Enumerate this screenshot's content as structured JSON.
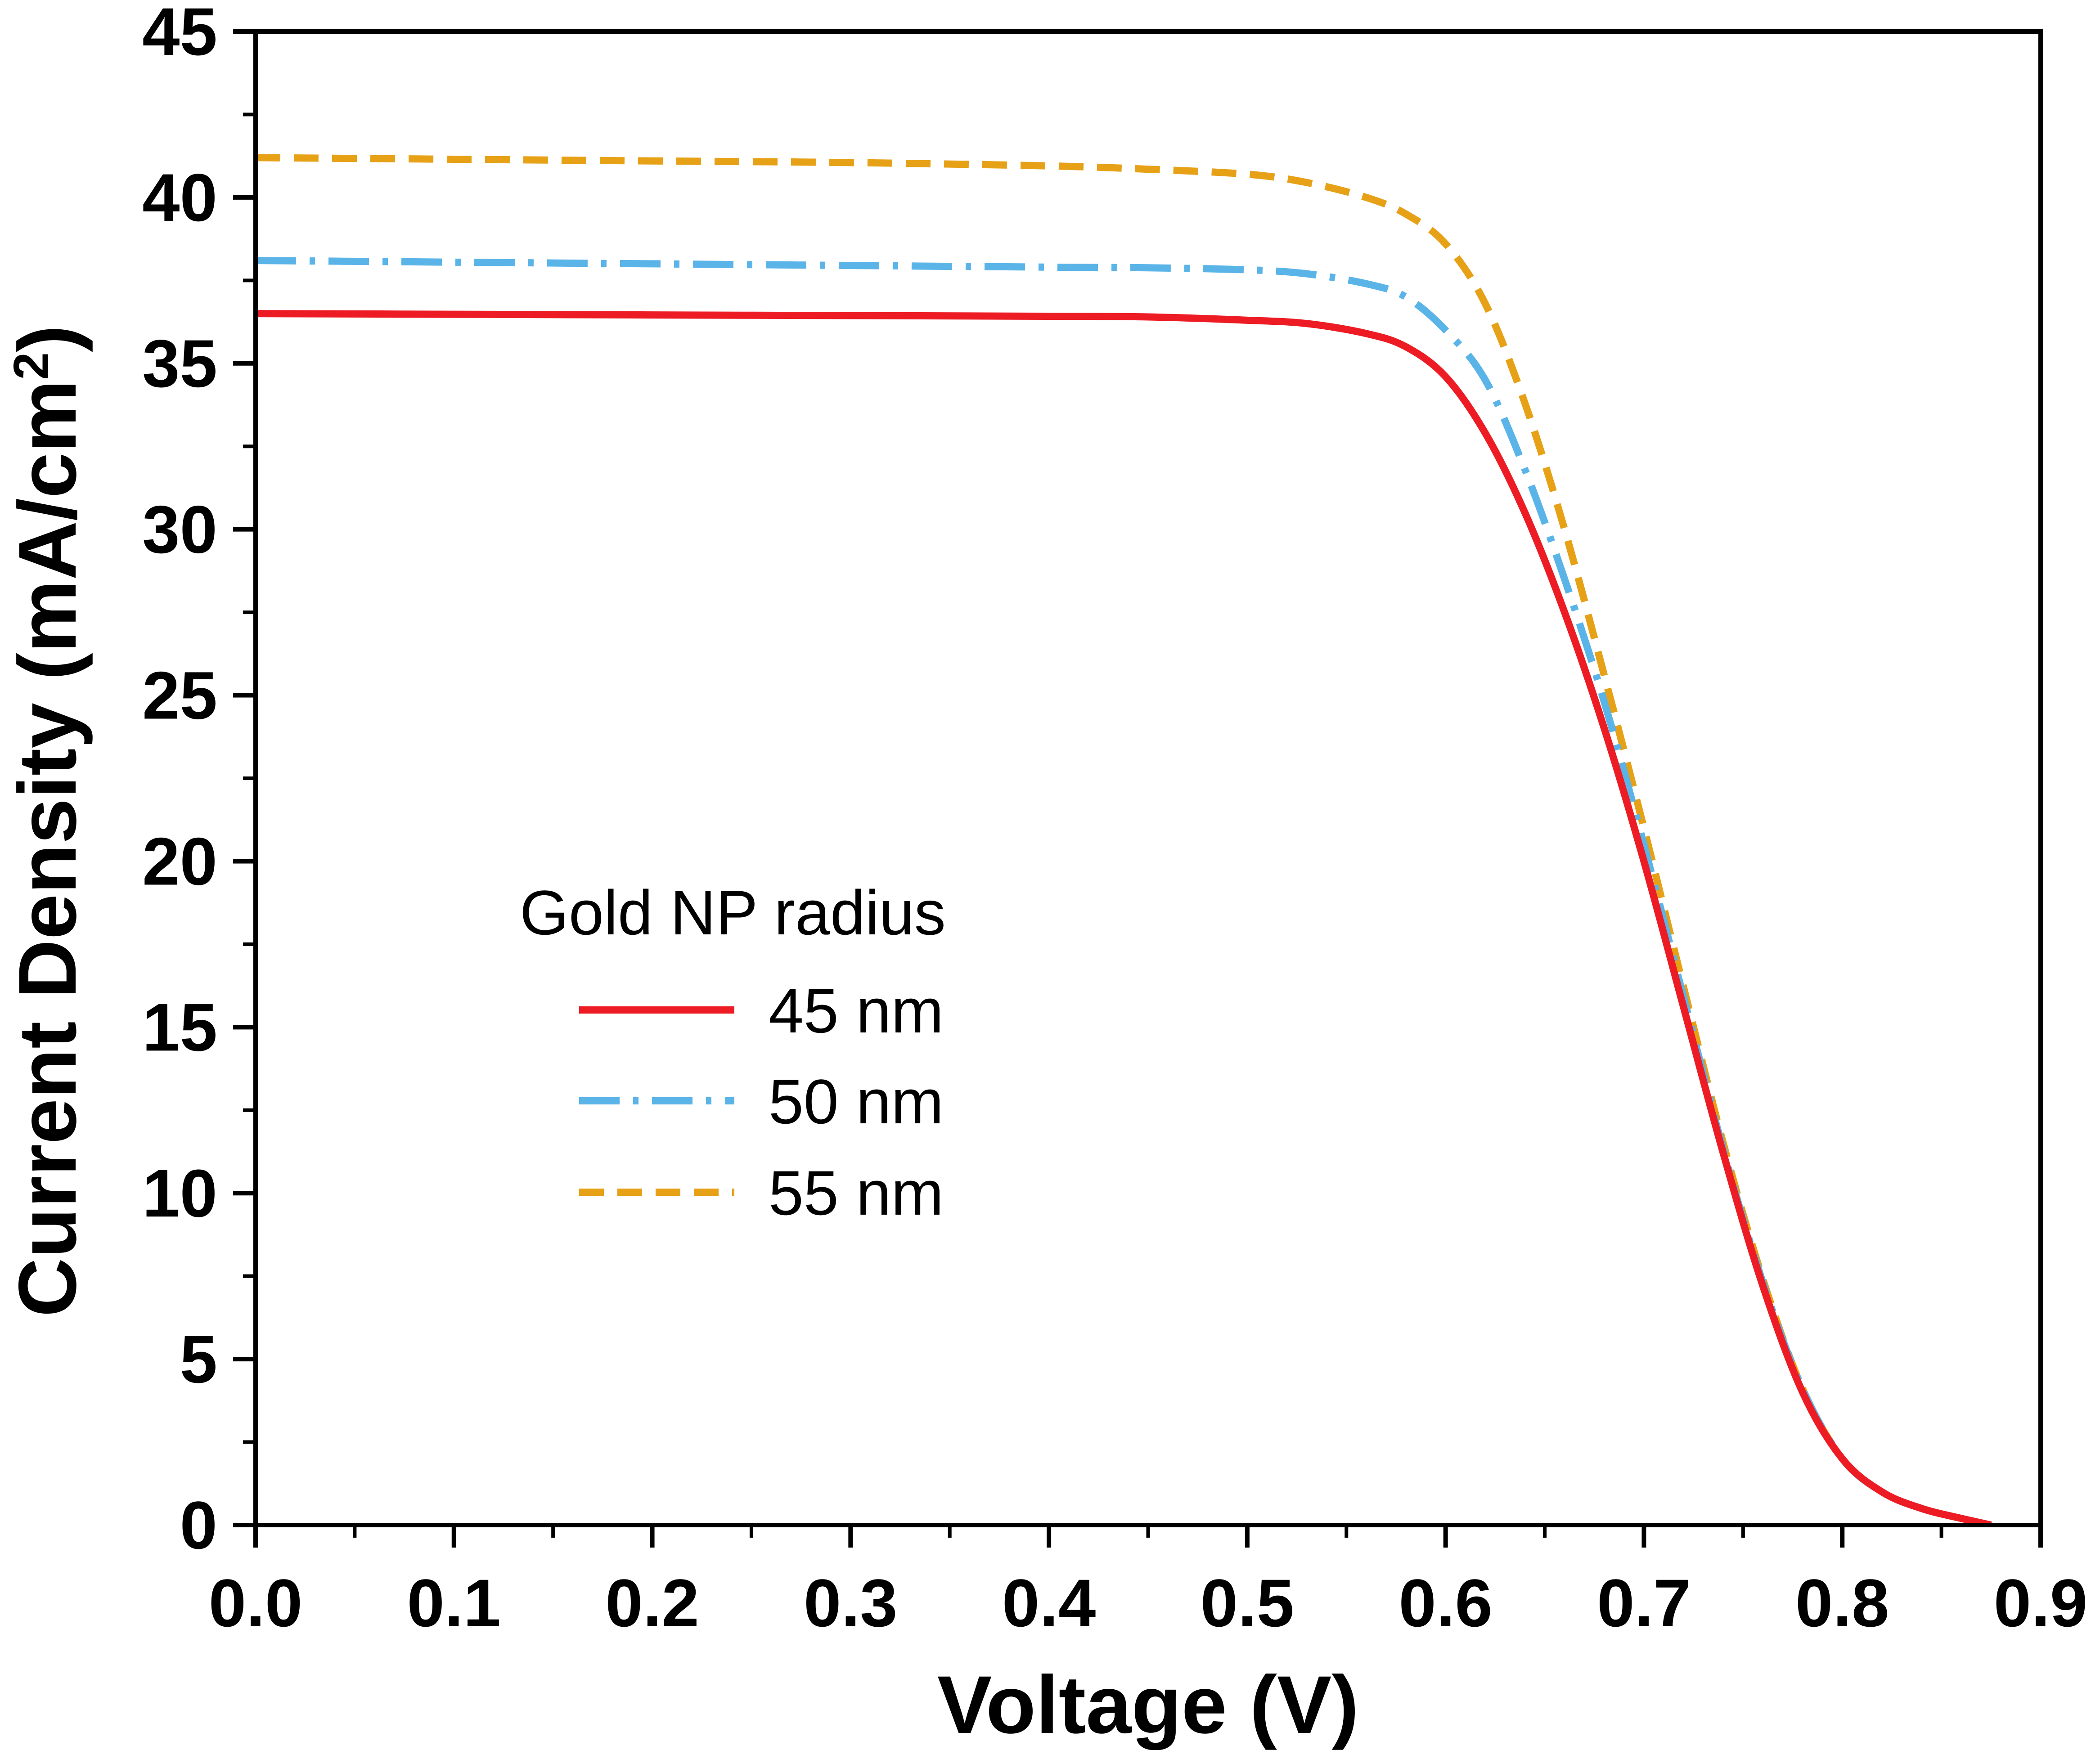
{
  "chart_data": {
    "type": "line",
    "title": "",
    "xlabel": "Voltage (V)",
    "ylabel_main": "Current Density (mA/cm",
    "ylabel_sup": "2",
    "ylabel_close": ")",
    "xlim": [
      0.0,
      0.9
    ],
    "ylim": [
      0,
      45
    ],
    "x_ticks": [
      "0.0",
      "0.1",
      "0.2",
      "0.3",
      "0.4",
      "0.5",
      "0.6",
      "0.7",
      "0.8",
      "0.9"
    ],
    "y_ticks": [
      "0",
      "5",
      "10",
      "15",
      "20",
      "25",
      "30",
      "35",
      "40",
      "45"
    ],
    "x_tick_values": [
      0.0,
      0.1,
      0.2,
      0.3,
      0.4,
      0.5,
      0.6,
      0.7,
      0.8,
      0.9
    ],
    "y_tick_values": [
      0,
      5,
      10,
      15,
      20,
      25,
      30,
      35,
      40,
      45
    ],
    "legend": {
      "title": "Gold NP radius",
      "position": "center-left"
    },
    "series": [
      {
        "name": "45 nm",
        "color": "#ed1c24",
        "style": "solid",
        "x": [
          0.0,
          0.1,
          0.2,
          0.3,
          0.4,
          0.45,
          0.5,
          0.53,
          0.56,
          0.58,
          0.6,
          0.62,
          0.64,
          0.66,
          0.68,
          0.7,
          0.72,
          0.74,
          0.76,
          0.78,
          0.8,
          0.82,
          0.84,
          0.86,
          0.875
        ],
        "y": [
          36.5,
          36.48,
          36.46,
          36.44,
          36.42,
          36.4,
          36.3,
          36.2,
          35.9,
          35.5,
          34.6,
          32.9,
          30.5,
          27.5,
          24.0,
          20.0,
          15.6,
          11.2,
          7.2,
          4.0,
          2.0,
          1.0,
          0.5,
          0.2,
          0.0
        ]
      },
      {
        "name": "50 nm",
        "color": "#5ab4e8",
        "style": "dashdot",
        "x": [
          0.0,
          0.1,
          0.2,
          0.3,
          0.4,
          0.45,
          0.5,
          0.53,
          0.56,
          0.58,
          0.6,
          0.62,
          0.64,
          0.66,
          0.68,
          0.7,
          0.72,
          0.74,
          0.76,
          0.78,
          0.8,
          0.82,
          0.84,
          0.86,
          0.875
        ],
        "y": [
          38.1,
          38.05,
          38.0,
          37.95,
          37.9,
          37.88,
          37.82,
          37.7,
          37.4,
          37.0,
          36.0,
          34.5,
          31.8,
          28.5,
          24.8,
          20.5,
          15.9,
          11.3,
          7.3,
          4.1,
          2.0,
          1.0,
          0.5,
          0.2,
          0.0
        ]
      },
      {
        "name": "55 nm",
        "color": "#e6a117",
        "style": "dashed",
        "x": [
          0.0,
          0.1,
          0.2,
          0.3,
          0.4,
          0.45,
          0.5,
          0.53,
          0.56,
          0.58,
          0.6,
          0.62,
          0.64,
          0.66,
          0.68,
          0.7,
          0.72,
          0.74,
          0.76,
          0.78,
          0.8,
          0.82,
          0.84,
          0.86,
          0.875
        ],
        "y": [
          41.2,
          41.15,
          41.1,
          41.05,
          40.95,
          40.85,
          40.7,
          40.45,
          40.0,
          39.5,
          38.6,
          36.8,
          33.8,
          30.0,
          25.6,
          21.0,
          16.2,
          11.5,
          7.4,
          4.1,
          2.0,
          1.0,
          0.5,
          0.2,
          0.0
        ]
      }
    ]
  }
}
